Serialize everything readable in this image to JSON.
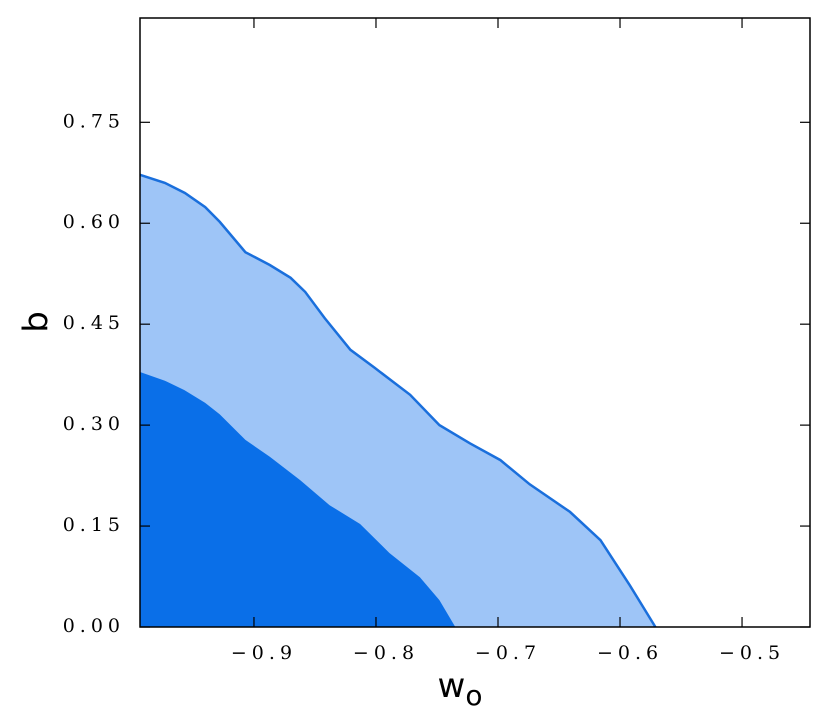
{
  "chart_data": {
    "type": "contour",
    "xlabel": "w",
    "xlabel_sub": "o",
    "ylabel": "b",
    "xlim": [
      -0.9934,
      -0.4443
    ],
    "ylim": [
      0,
      0.905
    ],
    "xticks": [
      {
        "value": -0.9,
        "label": "−0.9"
      },
      {
        "value": -0.8,
        "label": "−0.8"
      },
      {
        "value": -0.7,
        "label": "−0.7"
      },
      {
        "value": -0.6,
        "label": "−0.6"
      },
      {
        "value": -0.5,
        "label": "−0.5"
      }
    ],
    "yticks": [
      {
        "value": 0,
        "label": "0.00"
      },
      0.15,
      {
        "value": 0.3,
        "label": "0.30"
      },
      0.45,
      {
        "value": 0.6,
        "label": "0.60"
      },
      0.75
    ],
    "contours": [
      {
        "color": "#9ec5f7",
        "line_color": "#1a6fdc",
        "x": [
          -0.9934,
          -0.973,
          -0.9566,
          -0.94,
          -0.928,
          -0.907,
          -0.887,
          -0.87,
          -0.858,
          -0.842,
          -0.821,
          -0.801,
          -0.772,
          -0.748,
          -0.723,
          -0.698,
          -0.674,
          -0.641,
          -0.616,
          -0.592,
          -0.571
        ],
        "y": [
          0.672,
          0.66,
          0.645,
          0.624,
          0.602,
          0.557,
          0.538,
          0.519,
          0.498,
          0.459,
          0.412,
          0.385,
          0.345,
          0.3,
          0.273,
          0.248,
          0.212,
          0.171,
          0.129,
          0.062,
          0
        ]
      },
      {
        "color": "#0a6fe8",
        "x": [
          -0.9934,
          -0.973,
          -0.957,
          -0.94,
          -0.928,
          -0.907,
          -0.887,
          -0.862,
          -0.838,
          -0.813,
          -0.789,
          -0.764,
          -0.748,
          -0.735
        ],
        "y": [
          0.379,
          0.366,
          0.352,
          0.333,
          0.316,
          0.278,
          0.253,
          0.218,
          0.181,
          0.153,
          0.11,
          0.074,
          0.04,
          0
        ]
      }
    ]
  }
}
